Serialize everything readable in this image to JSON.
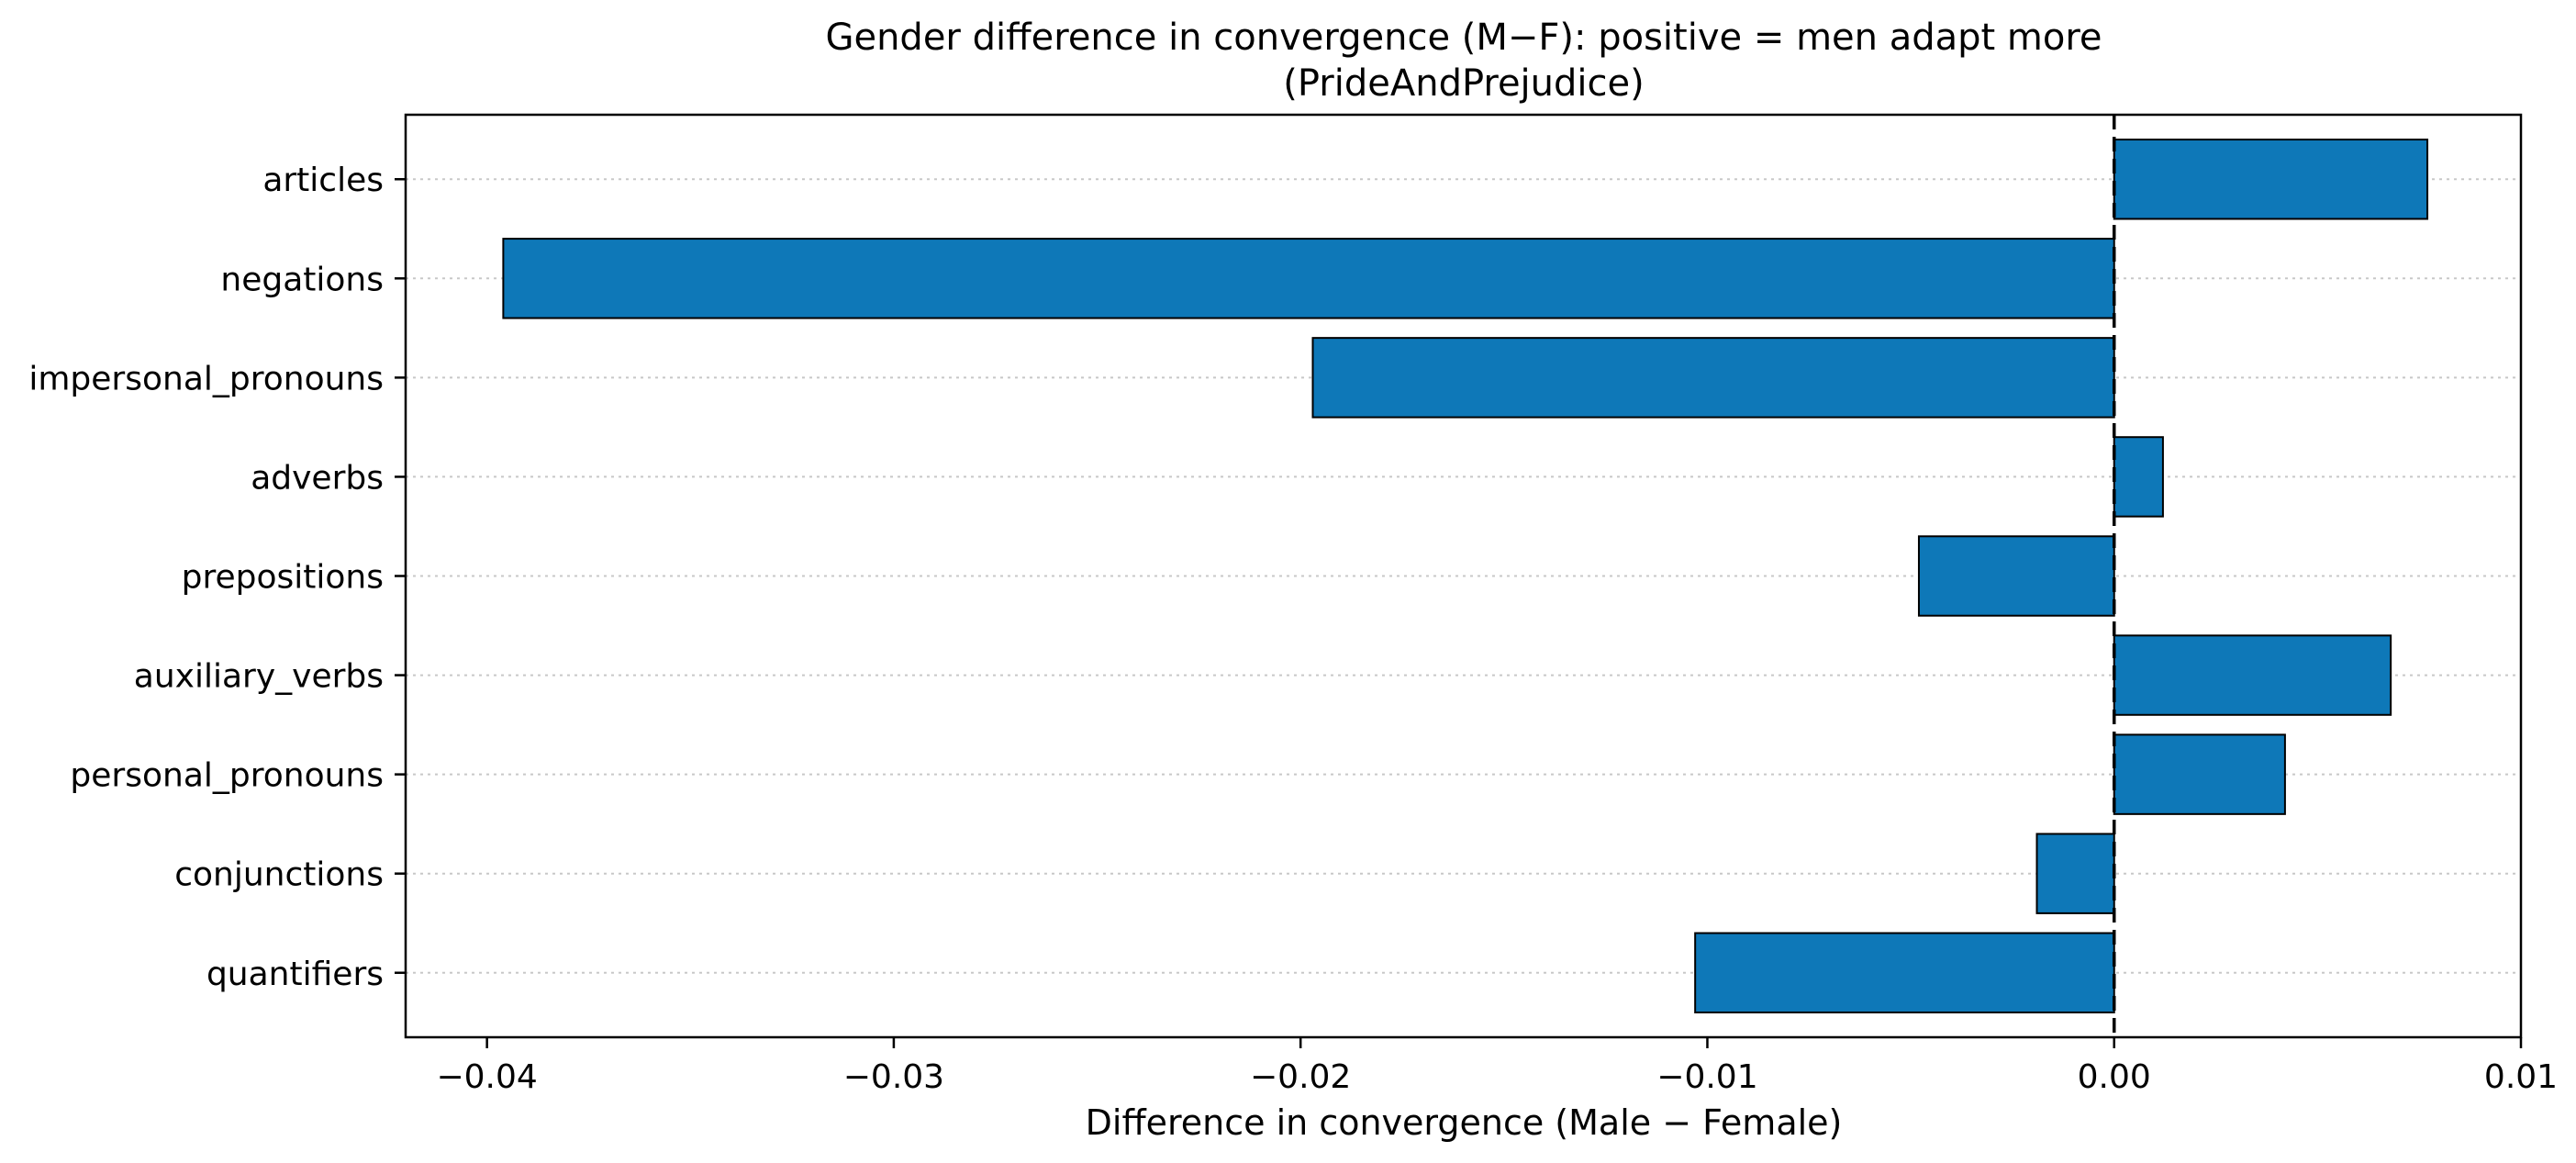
{
  "chart_data": {
    "type": "bar",
    "orientation": "horizontal",
    "title": "Gender difference in convergence (M−F): positive = men adapt more",
    "subtitle": "(PrideAndPrejudice)",
    "xlabel": "Difference in convergence (Male − Female)",
    "ylabel": "",
    "categories": [
      "articles",
      "negations",
      "impersonal_pronouns",
      "adverbs",
      "prepositions",
      "auxiliary_verbs",
      "personal_pronouns",
      "conjunctions",
      "quantifiers"
    ],
    "values": [
      0.0077,
      -0.0396,
      -0.0197,
      0.0012,
      -0.0048,
      0.0068,
      0.0042,
      -0.0019,
      -0.0103
    ],
    "xlim": [
      -0.042,
      0.01
    ],
    "xticks": [
      -0.04,
      -0.03,
      -0.02,
      -0.01,
      0.0,
      0.01
    ],
    "xtick_labels": [
      "−0.04",
      "−0.03",
      "−0.02",
      "−0.01",
      "0.00",
      "0.01"
    ],
    "bar_color": "#0e78b8",
    "edge_color": "#000000",
    "reference_line": {
      "x": 0,
      "style": "dashed"
    },
    "grid": "horizontal dotted",
    "legend": "none"
  }
}
